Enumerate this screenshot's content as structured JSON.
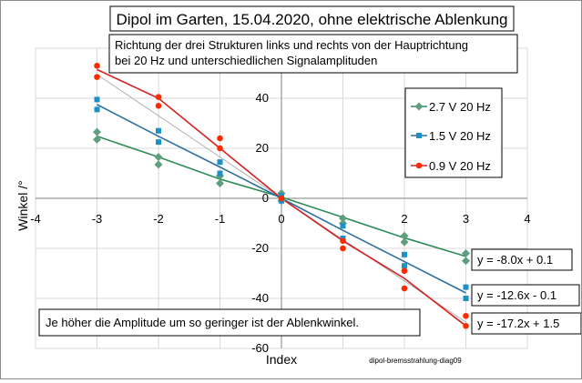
{
  "chart_data": {
    "type": "scatter",
    "title": "Dipol im Garten, 15.04.2020, ohne elektrische Ablenkung",
    "subtitle_lines": [
      "Richtung der drei Strukturen links und rechts von der Hauptrichtung",
      "bei 20 Hz und unterschiedlichen Signalamplituden"
    ],
    "xlabel": "Index",
    "ylabel": "Winkel /°",
    "xlim": [
      -4,
      4
    ],
    "ylim": [
      -60,
      60
    ],
    "x_ticks": [
      -4,
      -3,
      -2,
      -1,
      0,
      1,
      2,
      3,
      4
    ],
    "y_ticks": [
      -60,
      -40,
      -20,
      0,
      20,
      40
    ],
    "grid": true,
    "legend_position": "right",
    "note": "Je höher die Amplitude um so geringer ist der Ablenkwinkel.",
    "source_label": "dipol-bremsstrahlung-diag09",
    "series": [
      {
        "name": "2.7 V 20 Hz",
        "color": "#2e8b57",
        "marker_color": "#5f9e7f",
        "marker": "diamond",
        "line_x": [
          -3,
          -2,
          -1,
          0,
          1,
          2,
          3
        ],
        "line_y": [
          24.8,
          16.5,
          7.7,
          0.5,
          -7.6,
          -15.8,
          -23.2
        ],
        "points": [
          [
            -3,
            23.5
          ],
          [
            -3,
            26.5
          ],
          [
            -2,
            13.5
          ],
          [
            -2,
            16.5
          ],
          [
            -1,
            6
          ],
          [
            -1,
            9
          ],
          [
            0,
            2
          ],
          [
            0,
            -1
          ],
          [
            1,
            -8
          ],
          [
            1,
            -10
          ],
          [
            2,
            -15
          ],
          [
            2,
            -17.5
          ],
          [
            3,
            -22
          ],
          [
            3,
            -25
          ]
        ],
        "equation": "y = -8.0x + 0.1"
      },
      {
        "name": "1.5 V 20 Hz",
        "color": "#2e6f9e",
        "marker_color": "#1e90c8",
        "marker": "square",
        "line_x": [
          -3,
          -2,
          -1,
          0,
          1,
          2,
          3
        ],
        "line_y": [
          37.5,
          24.8,
          12.5,
          0,
          -12.8,
          -25.3,
          -37.8
        ],
        "points": [
          [
            -3,
            35.5
          ],
          [
            -3,
            39.5
          ],
          [
            -2,
            22.5
          ],
          [
            -2,
            27
          ],
          [
            -1,
            10
          ],
          [
            -1,
            14.5
          ],
          [
            0,
            1
          ],
          [
            0,
            -1
          ],
          [
            1,
            -11
          ],
          [
            1,
            -16
          ],
          [
            2,
            -22.5
          ],
          [
            2,
            -27
          ],
          [
            3,
            -35.5
          ],
          [
            3,
            -40
          ]
        ],
        "equation": "y = -12.6x - 0.1"
      },
      {
        "name": "0.9 V 20 Hz",
        "color": "#d42020",
        "marker_color": "#ff2a00",
        "marker": "circle",
        "line_x": [
          -3,
          -2,
          -1,
          0,
          1,
          2,
          3
        ],
        "line_y": [
          51.5,
          40,
          20,
          0,
          -17,
          -32,
          -51
        ],
        "points": [
          [
            -3,
            48.5
          ],
          [
            -3,
            53
          ],
          [
            -2,
            37
          ],
          [
            -2,
            40.5
          ],
          [
            -1,
            20
          ],
          [
            -1,
            24
          ],
          [
            0,
            0
          ],
          [
            1,
            -17
          ],
          [
            1,
            -20
          ],
          [
            2,
            -29
          ],
          [
            2,
            -36
          ],
          [
            3,
            -47
          ],
          [
            3,
            -51
          ]
        ],
        "equation": "y = -17.2x + 1.5"
      }
    ]
  }
}
